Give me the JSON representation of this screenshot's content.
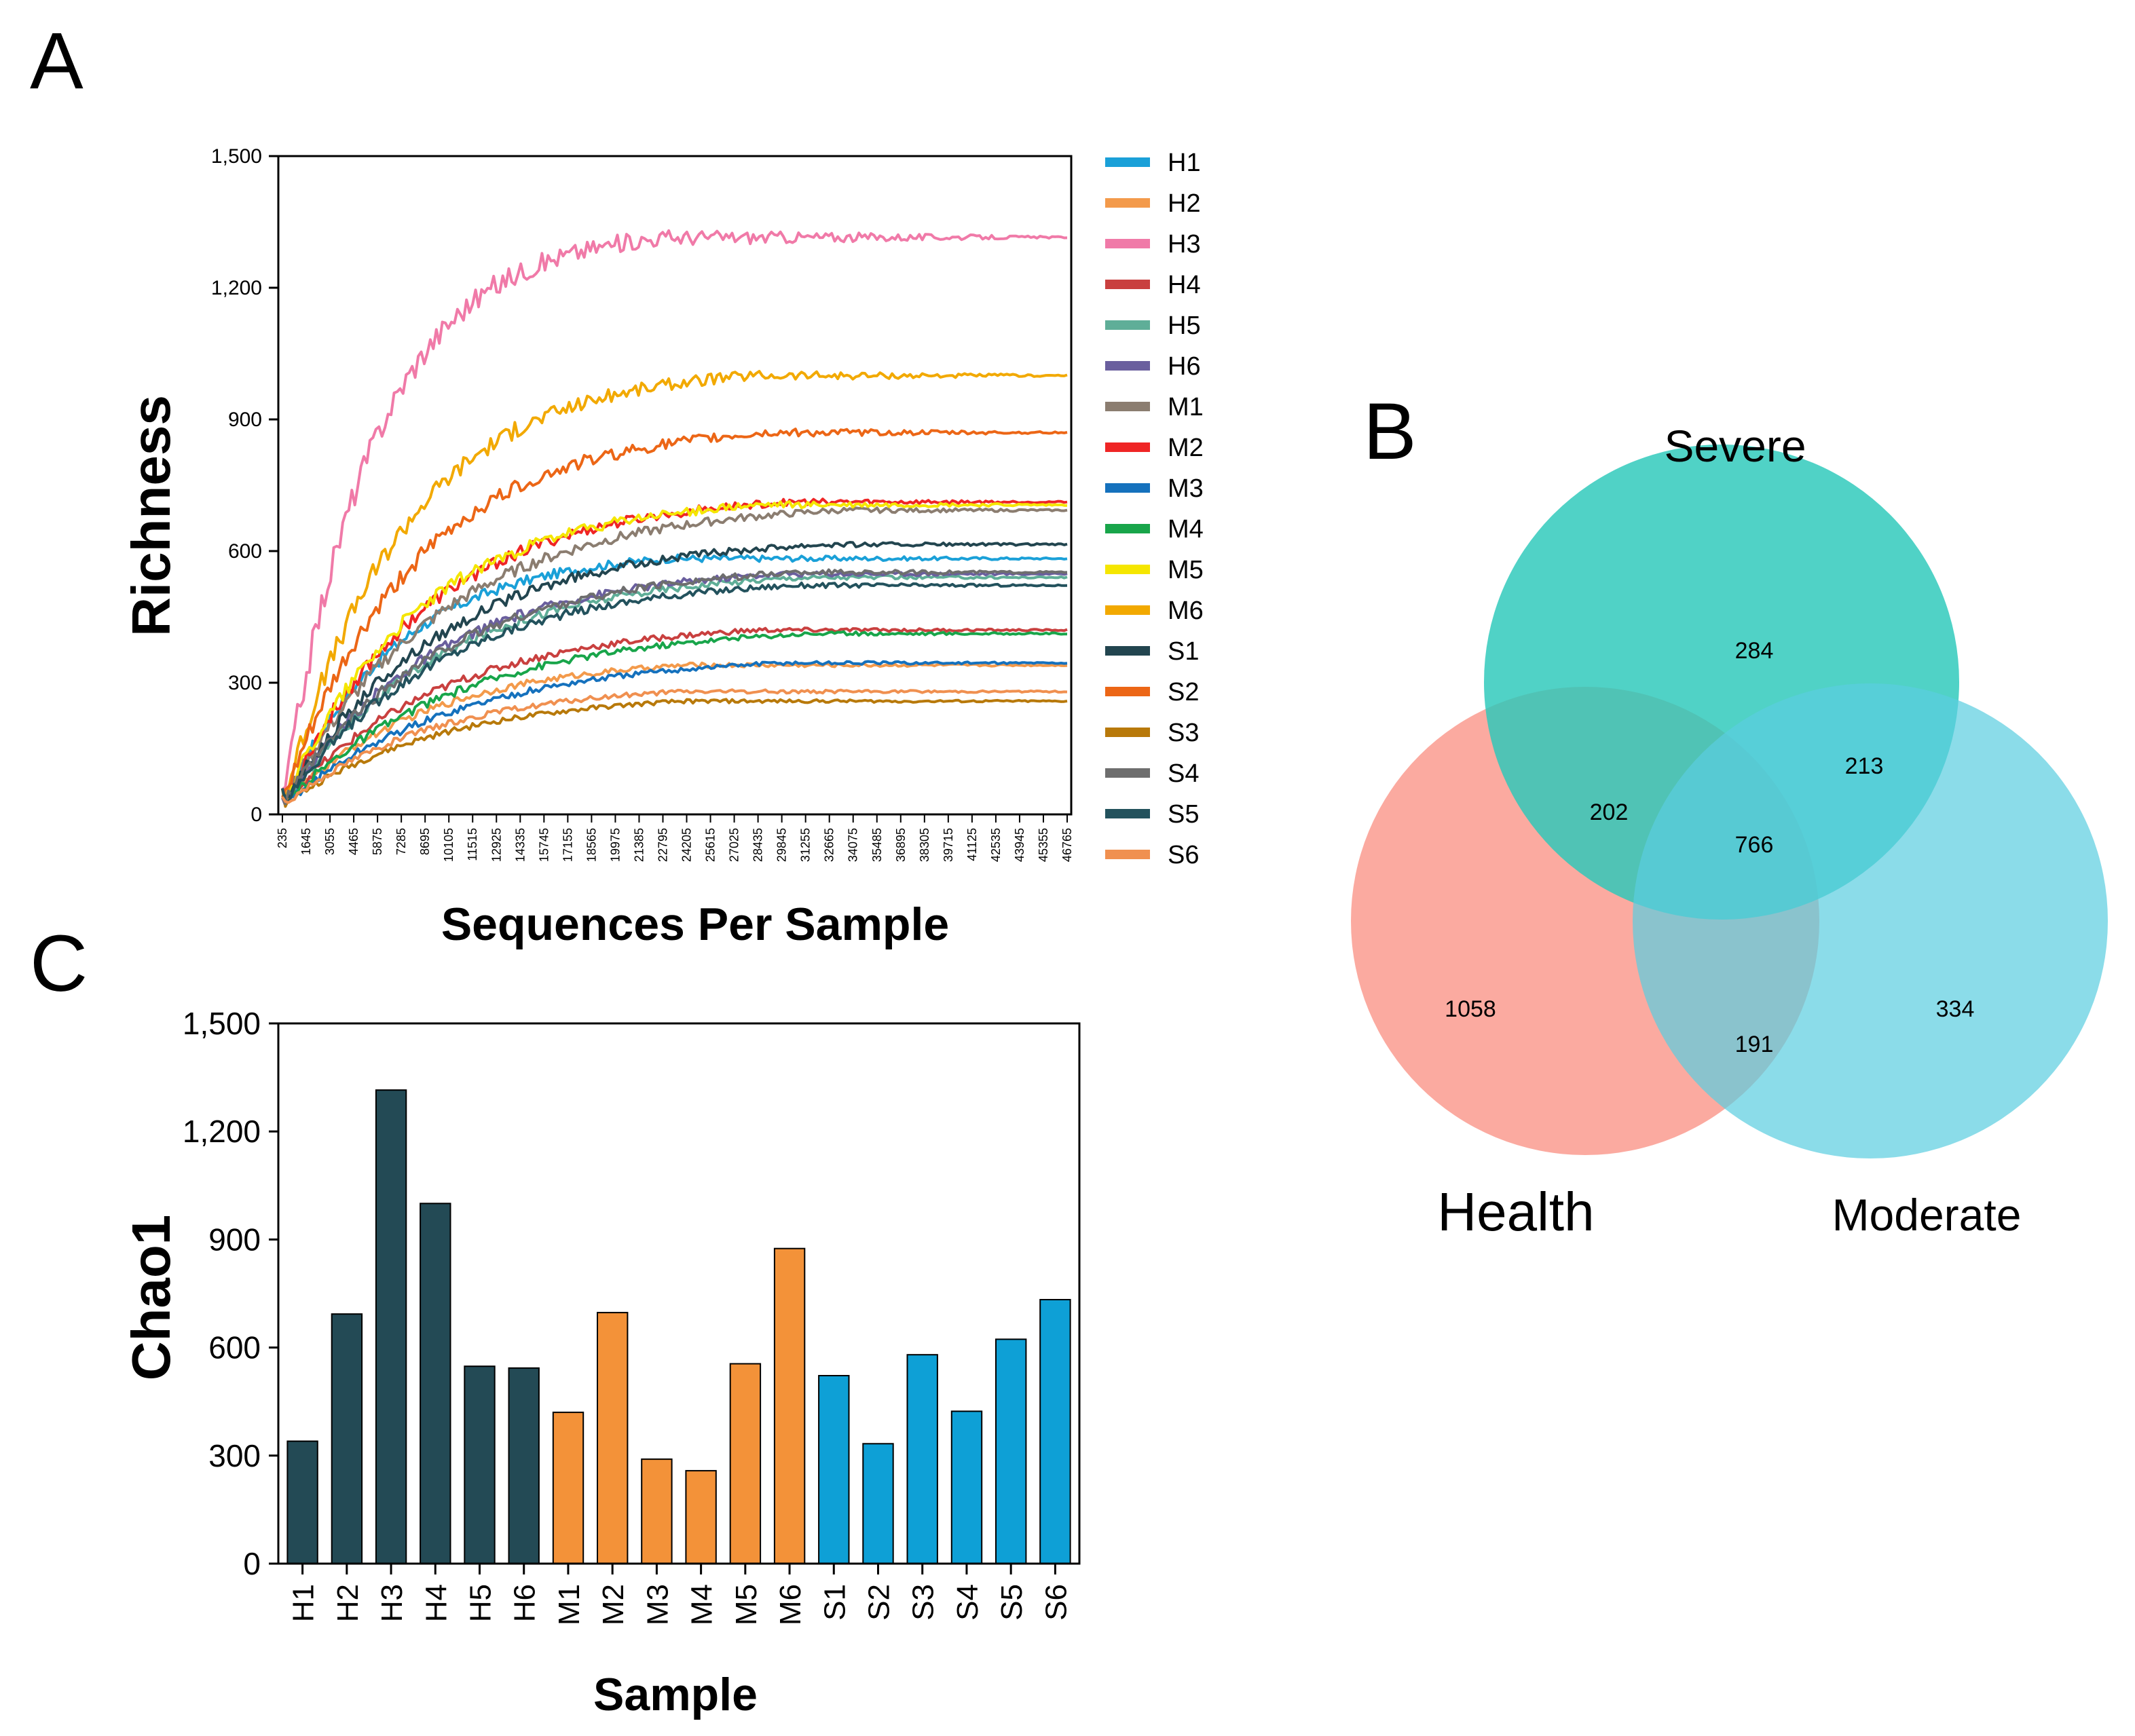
{
  "panels": {
    "a": "A",
    "b": "B",
    "c": "C"
  },
  "chart_data": [
    {
      "type": "line",
      "panel": "A",
      "title": "",
      "xlabel": "Sequences Per Sample",
      "ylabel": "Richness",
      "xlim": [
        235,
        47000
      ],
      "ylim": [
        0,
        1500
      ],
      "y_ticks": [
        "0",
        "300",
        "600",
        "900",
        "1,200",
        "1,500"
      ],
      "y_tick_values": [
        0,
        300,
        600,
        900,
        1200,
        1500
      ],
      "x_ticks": [
        "235",
        "1645",
        "3055",
        "4465",
        "5875",
        "7285",
        "8695",
        "10105",
        "11515",
        "12925",
        "14335",
        "15745",
        "17155",
        "18565",
        "19975",
        "21385",
        "22795",
        "24205",
        "25615",
        "27025",
        "28435",
        "29845",
        "31255",
        "32665",
        "34075",
        "35485",
        "36895",
        "38305",
        "39715",
        "41125",
        "42535",
        "43945",
        "45355",
        "46765"
      ],
      "legend_position": "right",
      "series": [
        {
          "name": "H1",
          "color": "#1aa0d8",
          "plateau": 583,
          "rate": 0.068
        },
        {
          "name": "H2",
          "color": "#f39a4b",
          "plateau": 340,
          "rate": 0.055
        },
        {
          "name": "H3",
          "color": "#f07aa8",
          "plateau": 1315,
          "rate": 0.085
        },
        {
          "name": "H4",
          "color": "#c9403f",
          "plateau": 420,
          "rate": 0.05
        },
        {
          "name": "H5",
          "color": "#5fae98",
          "plateau": 540,
          "rate": 0.05
        },
        {
          "name": "H6",
          "color": "#6a5f9e",
          "plateau": 548,
          "rate": 0.052
        },
        {
          "name": "M1",
          "color": "#8b7d70",
          "plateau": 693,
          "rate": 0.05
        },
        {
          "name": "M2",
          "color": "#ef2525",
          "plateau": 712,
          "rate": 0.055
        },
        {
          "name": "M3",
          "color": "#1571bd",
          "plateau": 345,
          "rate": 0.045
        },
        {
          "name": "M4",
          "color": "#18a54a",
          "plateau": 412,
          "rate": 0.045
        },
        {
          "name": "M5",
          "color": "#f5e600",
          "plateau": 705,
          "rate": 0.058
        },
        {
          "name": "M6",
          "color": "#f2a900",
          "plateau": 1000,
          "rate": 0.065
        },
        {
          "name": "S1",
          "color": "#22454f",
          "plateau": 615,
          "rate": 0.05
        },
        {
          "name": "S2",
          "color": "#ec6616",
          "plateau": 870,
          "rate": 0.06
        },
        {
          "name": "S3",
          "color": "#b8790a",
          "plateau": 258,
          "rate": 0.05
        },
        {
          "name": "S4",
          "color": "#6e6e6e",
          "plateau": 552,
          "rate": 0.05
        },
        {
          "name": "S5",
          "color": "#23525d",
          "plateau": 522,
          "rate": 0.05
        },
        {
          "name": "S6",
          "color": "#f09050",
          "plateau": 280,
          "rate": 0.052
        }
      ]
    },
    {
      "type": "venn",
      "panel": "B",
      "sets": [
        {
          "name": "Severe",
          "color": "#29c8b9"
        },
        {
          "name": "Health",
          "color": "#f98d80"
        },
        {
          "name": "Moderate",
          "color": "#5acde0"
        }
      ],
      "regions": {
        "severe_only": 284,
        "health_only": 1058,
        "moderate_only": 334,
        "severe_health": 202,
        "severe_moderate": 213,
        "health_moderate": 191,
        "all_three": 766
      }
    },
    {
      "type": "bar",
      "panel": "C",
      "title": "",
      "xlabel": "Sample",
      "ylabel": "Chao1",
      "ylim": [
        0,
        1500
      ],
      "y_ticks": [
        "0",
        "300",
        "600",
        "900",
        "1,200",
        "1,500"
      ],
      "y_tick_values": [
        0,
        300,
        600,
        900,
        1200,
        1500
      ],
      "categories": [
        "H1",
        "H2",
        "H3",
        "H4",
        "H5",
        "H6",
        "M1",
        "M2",
        "M3",
        "M4",
        "M5",
        "M6",
        "S1",
        "S2",
        "S3",
        "S4",
        "S5",
        "S6"
      ],
      "values": [
        340,
        693,
        1315,
        1000,
        548,
        543,
        420,
        697,
        290,
        258,
        555,
        875,
        522,
        333,
        580,
        423,
        623,
        733
      ],
      "group_colors": {
        "H": "#234a55",
        "M": "#f39239",
        "S": "#0ea0d6"
      }
    }
  ]
}
